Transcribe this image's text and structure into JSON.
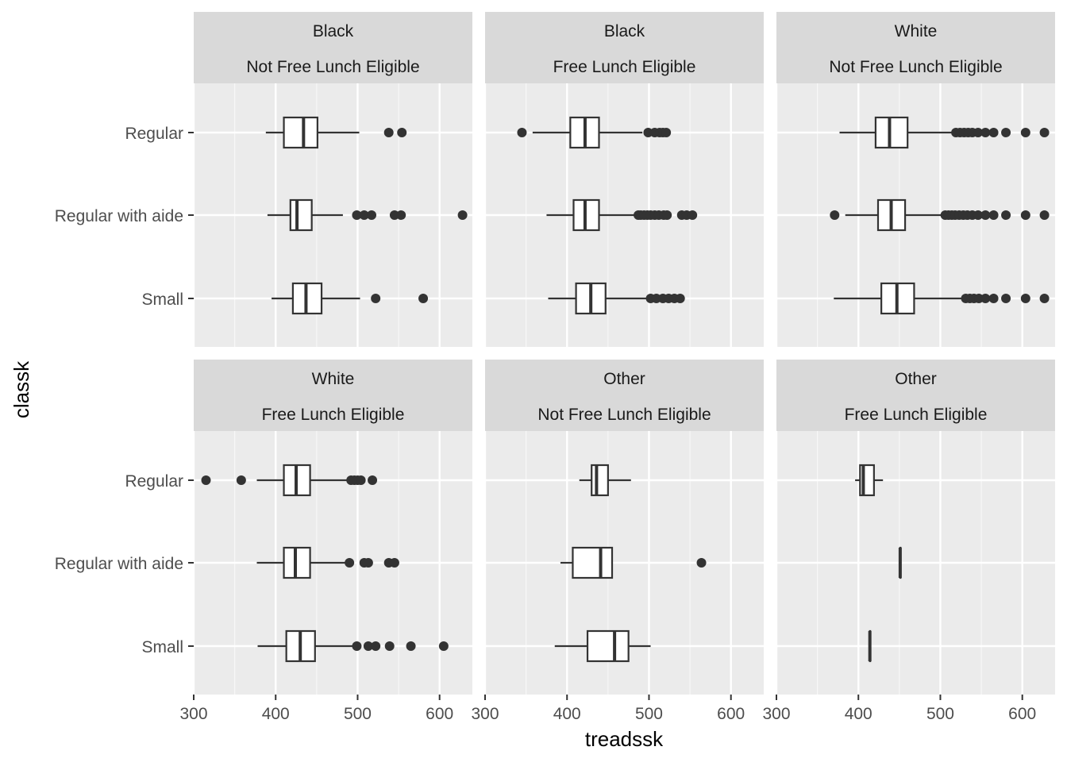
{
  "chart_data": {
    "type": "boxplot",
    "xlabel": "treadssk",
    "ylabel": "classk",
    "xlim": [
      300,
      640
    ],
    "x_ticks": [
      300,
      400,
      500,
      600
    ],
    "categories": [
      "Regular",
      "Regular with aide",
      "Small"
    ],
    "grid": true,
    "facets": [
      {
        "strip": [
          "Black",
          "Not Free Lunch Eligible"
        ],
        "boxes": [
          {
            "category": "Regular",
            "min": 388,
            "q1": 410,
            "median": 434,
            "q3": 451,
            "max": 502,
            "outliers": [
              538,
              554
            ]
          },
          {
            "category": "Regular with aide",
            "min": 390,
            "q1": 418,
            "median": 426,
            "q3": 444,
            "max": 482,
            "outliers": [
              499,
              508,
              517,
              545,
              553,
              628
            ]
          },
          {
            "category": "Small",
            "min": 395,
            "q1": 421,
            "median": 437,
            "q3": 456,
            "max": 503,
            "outliers": [
              522,
              580
            ]
          }
        ]
      },
      {
        "strip": [
          "Black",
          "Free Lunch Eligible"
        ],
        "boxes": [
          {
            "category": "Regular",
            "min": 358,
            "q1": 404,
            "median": 422,
            "q3": 439,
            "max": 492,
            "outliers": [
              345,
              499,
              507,
              513,
              517,
              521
            ]
          },
          {
            "category": "Regular with aide",
            "min": 375,
            "q1": 408,
            "median": 422,
            "q3": 439,
            "max": 484,
            "outliers": [
              487,
              490,
              494,
              498,
              502,
              507,
              512,
              518,
              522,
              540,
              546,
              553
            ]
          },
          {
            "category": "Small",
            "min": 377,
            "q1": 411,
            "median": 429,
            "q3": 447,
            "max": 500,
            "outliers": [
              502,
              509,
              517,
              524,
              531,
              538
            ]
          }
        ]
      },
      {
        "strip": [
          "White",
          "Not Free Lunch Eligible"
        ],
        "boxes": [
          {
            "category": "Regular",
            "min": 377,
            "q1": 421,
            "median": 438,
            "q3": 460,
            "max": 517,
            "outliers": [
              519,
              524,
              529,
              534,
              539,
              546,
              555,
              565,
              580,
              604,
              627
            ]
          },
          {
            "category": "Regular with aide",
            "min": 384,
            "q1": 424,
            "median": 440,
            "q3": 457,
            "max": 505,
            "outliers": [
              371,
              506,
              510,
              514,
              518,
              523,
              528,
              533,
              539,
              546,
              555,
              565,
              580,
              604,
              627
            ]
          },
          {
            "category": "Small",
            "min": 370,
            "q1": 428,
            "median": 447,
            "q3": 468,
            "max": 529,
            "outliers": [
              531,
              536,
              541,
              547,
              555,
              565,
              580,
              604,
              627
            ]
          }
        ]
      },
      {
        "strip": [
          "White",
          "Free Lunch Eligible"
        ],
        "boxes": [
          {
            "category": "Regular",
            "min": 377,
            "q1": 410,
            "median": 425,
            "q3": 442,
            "max": 490,
            "outliers": [
              315,
              358,
              492,
              496,
              500,
              504,
              518
            ]
          },
          {
            "category": "Regular with aide",
            "min": 377,
            "q1": 410,
            "median": 424,
            "q3": 442,
            "max": 486,
            "outliers": [
              490,
              508,
              513,
              538,
              545
            ]
          },
          {
            "category": "Small",
            "min": 378,
            "q1": 413,
            "median": 430,
            "q3": 448,
            "max": 497,
            "outliers": [
              499,
              513,
              522,
              539,
              565,
              605
            ]
          }
        ]
      },
      {
        "strip": [
          "Other",
          "Not Free Lunch Eligible"
        ],
        "boxes": [
          {
            "category": "Regular",
            "min": 415,
            "q1": 430,
            "median": 436,
            "q3": 450,
            "max": 478,
            "outliers": []
          },
          {
            "category": "Regular with aide",
            "min": 392,
            "q1": 407,
            "median": 441,
            "q3": 455,
            "max": 455,
            "outliers": [
              564
            ]
          },
          {
            "category": "Small",
            "min": 385,
            "q1": 425,
            "median": 458,
            "q3": 475,
            "max": 502,
            "outliers": []
          }
        ]
      },
      {
        "strip": [
          "Other",
          "Free Lunch Eligible"
        ],
        "boxes": [
          {
            "category": "Regular",
            "min": 396,
            "q1": 402,
            "median": 406,
            "q3": 419,
            "max": 430,
            "outliers": []
          },
          {
            "category": "Regular with aide",
            "min": 451,
            "q1": 451,
            "median": 451,
            "q3": 451,
            "max": 451,
            "outliers": []
          },
          {
            "category": "Small",
            "min": 414,
            "q1": 414,
            "median": 414,
            "q3": 414,
            "max": 414,
            "outliers": []
          }
        ]
      }
    ]
  }
}
